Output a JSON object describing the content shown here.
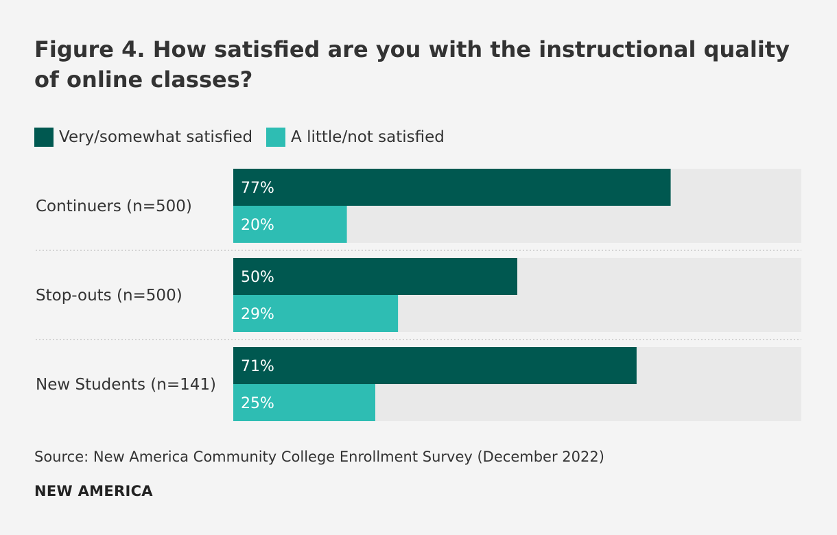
{
  "title": "Figure 4. How satisfied are you with the instructional quality of online classes?",
  "legend": [
    {
      "label": "Very/somewhat satisfied",
      "color": "#005850"
    },
    {
      "label": "A little/not satisfied",
      "color": "#2ebdb3"
    }
  ],
  "chart_data": {
    "type": "bar",
    "orientation": "horizontal",
    "title": "Figure 4. How satisfied are you with the instructional quality of online classes?",
    "categories": [
      "Continuers (n=500)",
      "Stop-outs (n=500)",
      "New Students (n=141)"
    ],
    "series": [
      {
        "name": "Very/somewhat satisfied",
        "values": [
          77,
          50,
          71
        ],
        "color": "#005850",
        "labels": [
          "77%",
          "50%",
          "71%"
        ]
      },
      {
        "name": "A little/not satisfied",
        "values": [
          20,
          29,
          25
        ],
        "color": "#2ebdb3",
        "labels": [
          "20%",
          "29%",
          "25%"
        ]
      }
    ],
    "xlim": [
      0,
      100
    ],
    "unit": "%",
    "legend_position": "top-left",
    "grid": false
  },
  "source": "Source: New America Community College Enrollment Survey (December 2022)",
  "brand": "NEW AMERICA",
  "colors": {
    "background": "#f4f4f4",
    "track": "#e9e9e9",
    "separator": "#c8c8c8",
    "text": "#333333",
    "bar_label": "#ffffff"
  }
}
